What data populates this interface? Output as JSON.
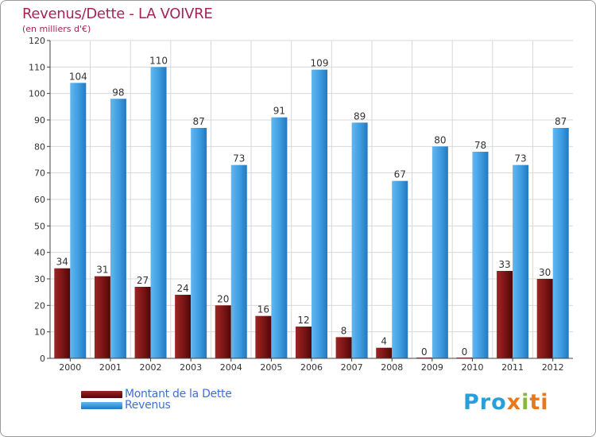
{
  "title": "Revenus/Dette - LA VOIVRE",
  "subtitle": "(en milliers d'€)",
  "colors": {
    "title": "#a3245a",
    "dette": "#7a1414",
    "revenus": "#3c9be0",
    "legend_text": "#3e6fd9",
    "axis": "#444444",
    "grid": "#d8d8d8"
  },
  "logo": {
    "p1": "Pro",
    "x": "x",
    "i": "i",
    "ti": "ti"
  },
  "chart_data": {
    "type": "bar",
    "categories": [
      "2000",
      "2001",
      "2002",
      "2003",
      "2004",
      "2005",
      "2006",
      "2007",
      "2008",
      "2009",
      "2010",
      "2011",
      "2012"
    ],
    "series": [
      {
        "name": "Montant de la Dette",
        "values": [
          34,
          31,
          27,
          24,
          20,
          16,
          12,
          8,
          4,
          0,
          0,
          33,
          30
        ]
      },
      {
        "name": "Revenus",
        "values": [
          104,
          98,
          110,
          87,
          73,
          91,
          109,
          89,
          67,
          80,
          78,
          73,
          87
        ]
      }
    ],
    "ylim": [
      0,
      120
    ],
    "yticks": [
      0,
      10,
      20,
      30,
      40,
      50,
      60,
      70,
      80,
      90,
      100,
      110,
      120
    ],
    "grid": true,
    "legend_position": "bottom-left",
    "data_labels": true
  }
}
